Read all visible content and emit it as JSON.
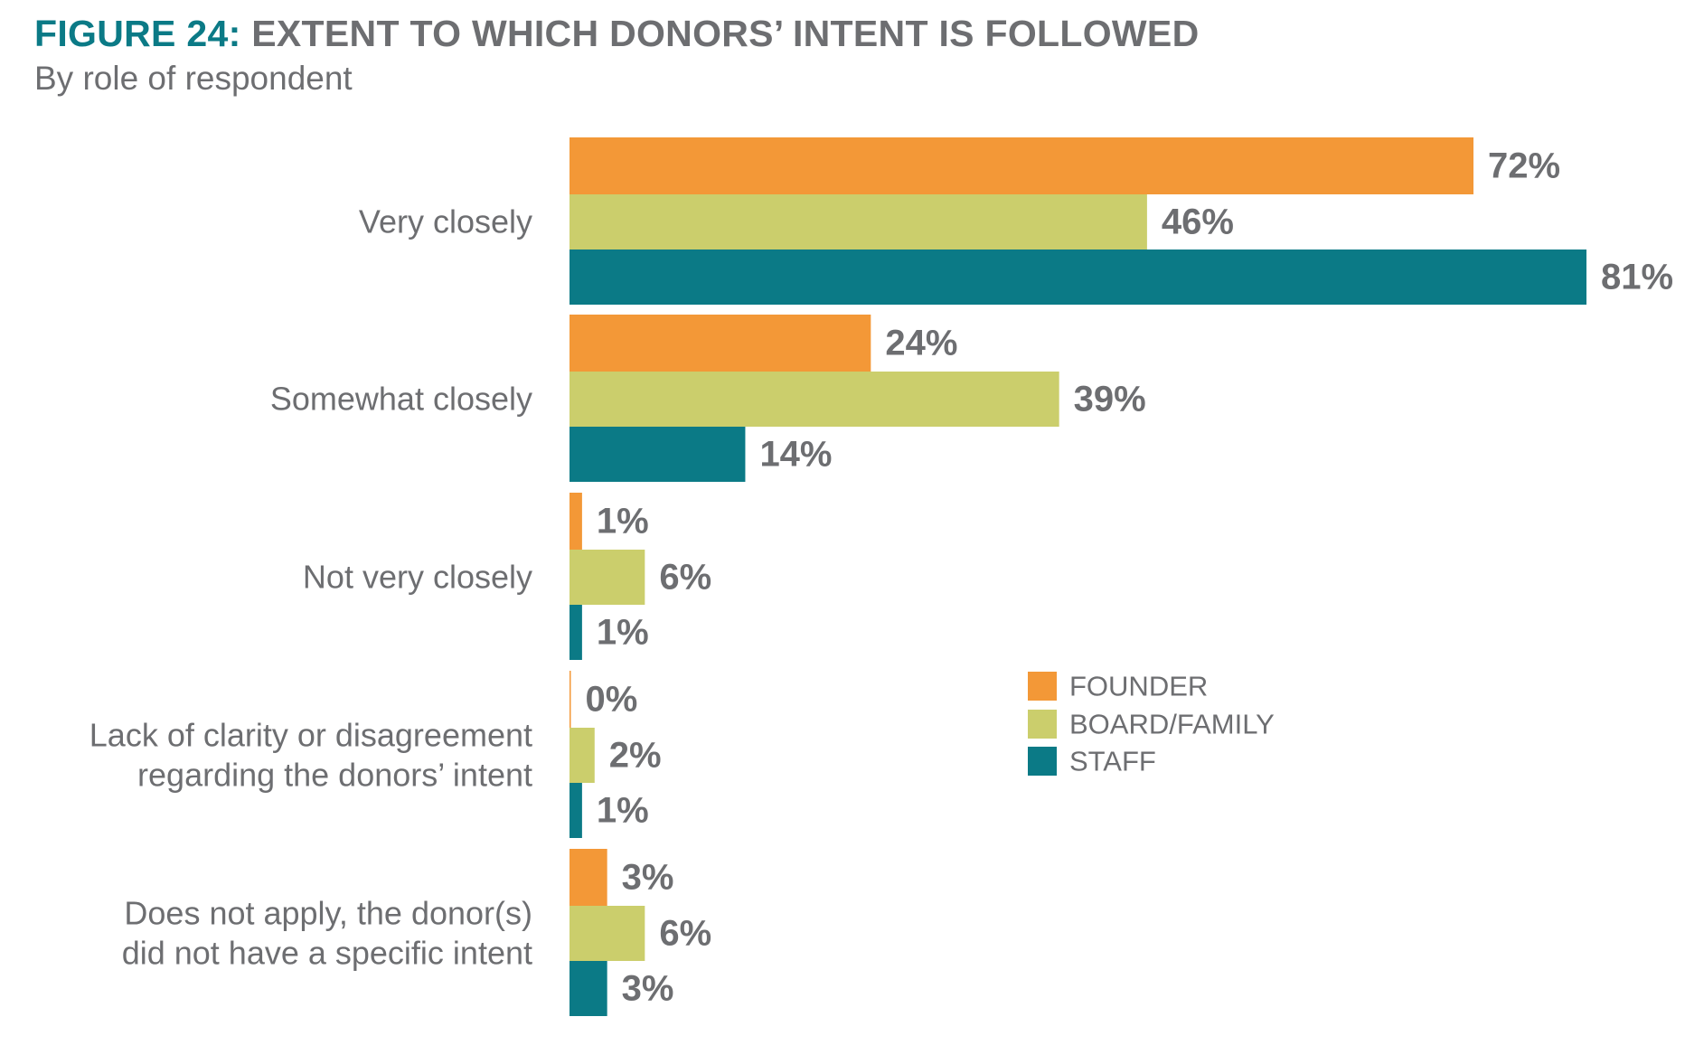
{
  "header": {
    "figure_label": "FIGURE 24:",
    "title": "EXTENT TO WHICH DONORS’ INTENT IS FOLLOWED",
    "subtitle": "By role of respondent"
  },
  "colors": {
    "founder": "#f39837",
    "board_family": "#cbce6c",
    "staff": "#0b7a86",
    "text": "#6d6e71"
  },
  "chart_data": {
    "type": "bar",
    "orientation": "horizontal",
    "title": "EXTENT TO WHICH DONORS’ INTENT IS FOLLOWED",
    "subtitle": "By role of respondent",
    "categories": [
      [
        "Very closely"
      ],
      [
        "Somewhat closely"
      ],
      [
        "Not very closely"
      ],
      [
        "Lack of clarity or disagreement",
        "regarding the donors’ intent"
      ],
      [
        "Does not apply, the donor(s)",
        "did not have a specific intent"
      ]
    ],
    "series": [
      {
        "name": "FOUNDER",
        "color": "#f39837",
        "values": [
          72,
          24,
          1,
          0,
          3
        ]
      },
      {
        "name": "BOARD/FAMILY",
        "color": "#cbce6c",
        "values": [
          46,
          39,
          6,
          2,
          6
        ]
      },
      {
        "name": "STAFF",
        "color": "#0b7a86",
        "values": [
          81,
          14,
          1,
          1,
          3
        ]
      }
    ],
    "value_suffix": "%",
    "xlim": [
      0,
      81
    ],
    "grid": false,
    "legend": "center-right"
  }
}
